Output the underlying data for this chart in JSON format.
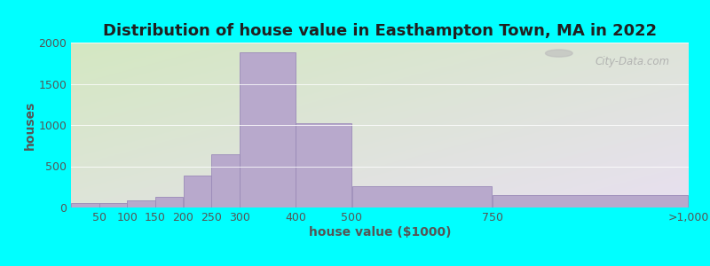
{
  "title": "Distribution of house value in Easthampton Town, MA in 2022",
  "xlabel": "house value ($1000)",
  "ylabel": "houses",
  "bar_color": "#b8a9cc",
  "bar_edgecolor": "#9a8ab8",
  "background_color": "#00ffff",
  "grad_color_topleft": "#d4e8c2",
  "grad_color_bottomright": "#e8e0f0",
  "bar_left_edges": [
    0,
    50,
    100,
    150,
    200,
    250,
    300,
    400,
    500,
    750
  ],
  "bar_widths": [
    50,
    50,
    50,
    50,
    50,
    50,
    100,
    100,
    250,
    350
  ],
  "bar_heights": [
    50,
    50,
    85,
    130,
    390,
    650,
    1880,
    1020,
    255,
    155
  ],
  "xtick_labels": [
    "50",
    "100",
    "150",
    "200",
    "250",
    "300",
    "400",
    "500",
    "750",
    ">1,000"
  ],
  "xtick_positions": [
    50,
    100,
    150,
    200,
    250,
    300,
    400,
    500,
    750,
    1100
  ],
  "xlim": [
    0,
    1100
  ],
  "ylim": [
    0,
    2000
  ],
  "yticks": [
    0,
    500,
    1000,
    1500,
    2000
  ],
  "title_fontsize": 13,
  "axis_label_fontsize": 10,
  "tick_fontsize": 9,
  "watermark_text": "City-Data.com"
}
